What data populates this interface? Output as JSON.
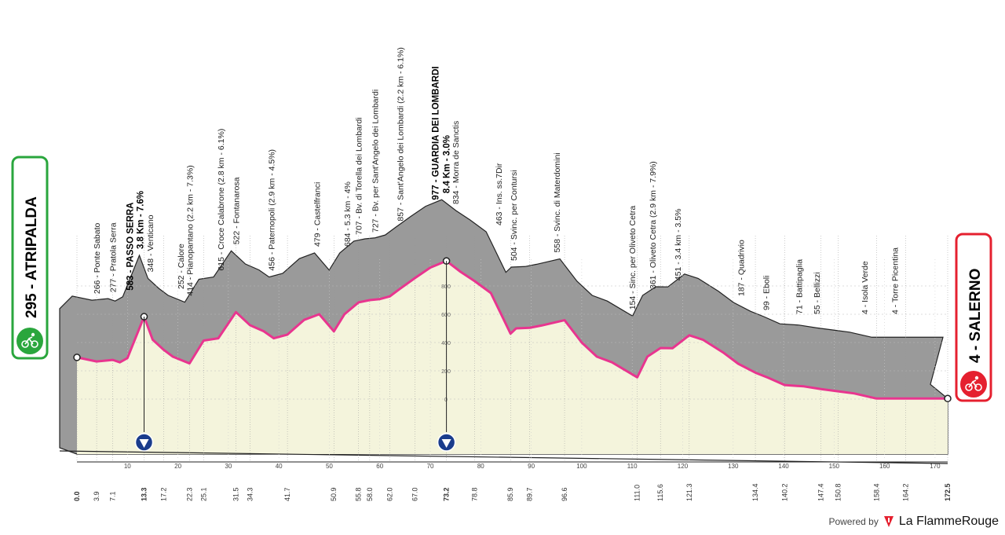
{
  "chart_data": {
    "type": "area",
    "start": {
      "label": "295 - ATRIPALDA",
      "alt": 295,
      "km": 0.0
    },
    "finish": {
      "label": "4 - SALERNO",
      "alt": 4,
      "km": 172.5
    },
    "xlim": [
      0,
      172.5
    ],
    "x_ticks": [
      "10",
      "20",
      "30",
      "40",
      "50",
      "60",
      "70",
      "80",
      "90",
      "100",
      "110",
      "120",
      "130",
      "140",
      "150",
      "160",
      "170"
    ],
    "y_ticks": [
      "0",
      "200",
      "400",
      "600",
      "800"
    ],
    "profile": [
      [
        0,
        295
      ],
      [
        3.9,
        266
      ],
      [
        7.1,
        277
      ],
      [
        8.5,
        260
      ],
      [
        10,
        290
      ],
      [
        13.3,
        583
      ],
      [
        15,
        420
      ],
      [
        17.2,
        348
      ],
      [
        19,
        300
      ],
      [
        22.3,
        252
      ],
      [
        25.1,
        414
      ],
      [
        28,
        430
      ],
      [
        31.5,
        615
      ],
      [
        34.3,
        522
      ],
      [
        37,
        480
      ],
      [
        39,
        430
      ],
      [
        41.7,
        456
      ],
      [
        45,
        560
      ],
      [
        48,
        600
      ],
      [
        50.9,
        479
      ],
      [
        53,
        600
      ],
      [
        55.8,
        684
      ],
      [
        58,
        700
      ],
      [
        60,
        707
      ],
      [
        62,
        727
      ],
      [
        64,
        780
      ],
      [
        67,
        857
      ],
      [
        70,
        930
      ],
      [
        73.2,
        977
      ],
      [
        76,
        900
      ],
      [
        78.8,
        834
      ],
      [
        82,
        750
      ],
      [
        85.9,
        463
      ],
      [
        87,
        500
      ],
      [
        89.7,
        504
      ],
      [
        92,
        520
      ],
      [
        96.6,
        558
      ],
      [
        100,
        400
      ],
      [
        103,
        300
      ],
      [
        106,
        260
      ],
      [
        111,
        154
      ],
      [
        113,
        300
      ],
      [
        115.6,
        361
      ],
      [
        118,
        360
      ],
      [
        121.3,
        451
      ],
      [
        124,
        420
      ],
      [
        128,
        330
      ],
      [
        131,
        250
      ],
      [
        134.4,
        187
      ],
      [
        137,
        150
      ],
      [
        140.2,
        99
      ],
      [
        144,
        90
      ],
      [
        147.4,
        71
      ],
      [
        150.8,
        55
      ],
      [
        154,
        40
      ],
      [
        158.4,
        4
      ],
      [
        162,
        4
      ],
      [
        164.2,
        4
      ],
      [
        168,
        4
      ],
      [
        172.5,
        4
      ]
    ],
    "km_markers": [
      "0.0",
      "3.9",
      "7.1",
      "13.3",
      "17.2",
      "22.3",
      "25.1",
      "31.5",
      "34.3",
      "41.7",
      "50.9",
      "55.8",
      "58.0",
      "62.0",
      "67.0",
      "73.2",
      "78.8",
      "85.9",
      "89.7",
      "96.6",
      "111.0",
      "115.6",
      "121.3",
      "134.4",
      "140.2",
      "147.4",
      "150.8",
      "158.4",
      "164.2",
      "172.5"
    ],
    "waypoints": [
      {
        "km": 3.9,
        "label": "266 - Ponte Sabato"
      },
      {
        "km": 7.1,
        "label": "277 - Pratola Serra"
      },
      {
        "km": 10.5,
        "label": "583 - PASSO SERRA",
        "major": true
      },
      {
        "km": 12.5,
        "label": "3.8 Km - 7.6%",
        "major": true
      },
      {
        "km": 14.5,
        "label": "348 - Venticano"
      },
      {
        "km": 20.5,
        "label": "252 - Calore"
      },
      {
        "km": 22.3,
        "label": "414 - Pianopantano (2.2 km - 7.3%)"
      },
      {
        "km": 28.5,
        "label": "615 - Croce Calabrone (2.8 km - 6.1%)"
      },
      {
        "km": 31.5,
        "label": "522 - Fontanarosa"
      },
      {
        "km": 38.5,
        "label": "456 - Paternopoli (2.9 km - 4.5%)"
      },
      {
        "km": 47.5,
        "label": "479 - Castelfranci"
      },
      {
        "km": 53.5,
        "label": "684 - 5.3 km - 4%"
      },
      {
        "km": 55.8,
        "label": "707 - Bv. di Torella dei Lombardi"
      },
      {
        "km": 59,
        "label": "727 - Bv. per Sant'Angelo dei Lombardi"
      },
      {
        "km": 64,
        "label": "857 - Sant'Angelo dei Lombardi (2.2 km - 6.1%)"
      },
      {
        "km": 71,
        "label": "977 - GUARDIA DEI LOMBARDI",
        "major": true
      },
      {
        "km": 73.2,
        "label": "8.4 Km - 3.0%",
        "major": true
      },
      {
        "km": 75,
        "label": "834 - Morra de Sanctis"
      },
      {
        "km": 83.5,
        "label": "463 - Ins. ss.7Dir"
      },
      {
        "km": 86.5,
        "label": "504 - Svinc. per Contursi"
      },
      {
        "km": 95,
        "label": "558 - Svinc. di Materdomini"
      },
      {
        "km": 110,
        "label": "154 - Sinc. per Oliveto Cetra"
      },
      {
        "km": 114,
        "label": "361 - Oliveto Cetra (2.9 km - 7.9%)"
      },
      {
        "km": 119,
        "label": "451 - 3.4 km - 3.5%"
      },
      {
        "km": 131.5,
        "label": "187 - Quadrivio"
      },
      {
        "km": 136.5,
        "label": "99 - Eboli"
      },
      {
        "km": 143,
        "label": "71 - Battipaglia"
      },
      {
        "km": 146.5,
        "label": "55 - Bellizzi"
      },
      {
        "km": 156,
        "label": "4 - Isola Verde"
      },
      {
        "km": 162,
        "label": "4 - Torre Picentina"
      }
    ],
    "sprint_kms": [
      13.3,
      73.2
    ]
  },
  "colors": {
    "profile_fill": "#f4f4dc",
    "relief": "#9a9a9a",
    "road": "#e8358f",
    "start_badge": "#2aa63d",
    "finish_badge": "#e5202f",
    "sprint": "#1a3c8c"
  },
  "credit": {
    "powered_by": "Powered by",
    "brand": "La FlammeRouge"
  }
}
